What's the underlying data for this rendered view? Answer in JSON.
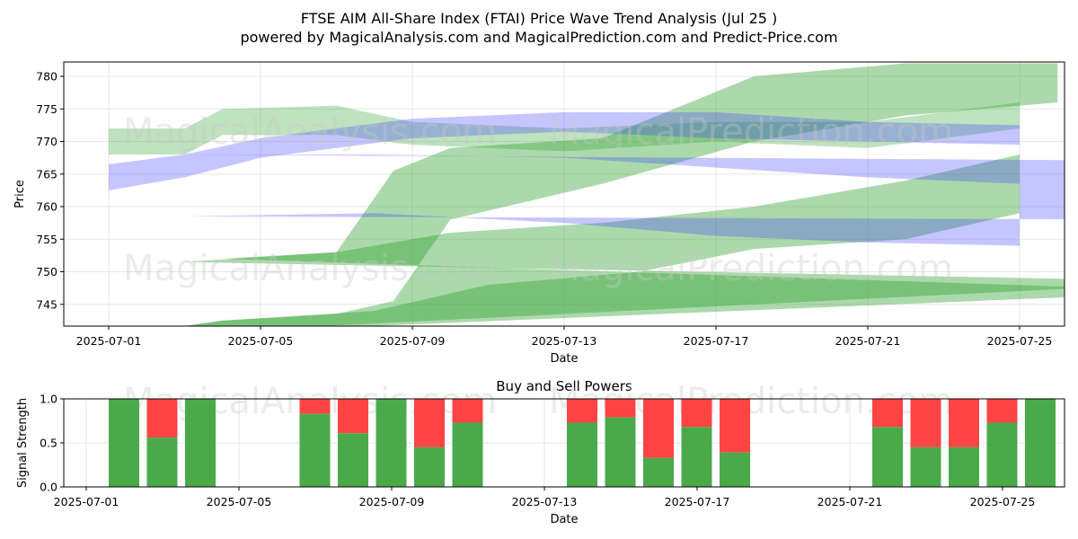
{
  "titles": {
    "main_line1": "FTSE AIM All-Share Index (FTAI) Price Wave Trend Analysis (Jul 25 )",
    "main_line2": "powered by MagicalAnalysis.com and MagicalPrediction.com and Predict-Price.com",
    "bottom": "Buy and Sell Powers"
  },
  "watermarks": [
    "MagicalAnalysis.com",
    "MagicalPrediction.com"
  ],
  "colors": {
    "buy": "#4aaa4a",
    "sell": "#ff4444",
    "green_band": "#2ca02c",
    "blue_band": "#4040ff"
  },
  "chart_data": [
    {
      "type": "area",
      "title": "FTSE AIM All-Share Index (FTAI) Price Wave Trend Analysis (Jul 25 )",
      "xlabel": "Date",
      "ylabel": "Price",
      "x_ticks": [
        "2025-07-01",
        "2025-07-05",
        "2025-07-09",
        "2025-07-13",
        "2025-07-17",
        "2025-07-21",
        "2025-07-25"
      ],
      "y_ticks": [
        745,
        750,
        755,
        760,
        765,
        770,
        775,
        780
      ],
      "xlim": [
        "2025-06-30",
        "2025-07-26"
      ],
      "ylim": [
        741.5,
        782
      ],
      "grid": true,
      "series": [
        {
          "color": "green",
          "opacity": 0.4,
          "upper": [
            [
              "2025-06-30",
              748.5
            ],
            [
              "2025-07-03",
              751.5
            ],
            [
              "2025-07-07",
              753
            ],
            [
              "2025-07-10",
              756
            ],
            [
              "2025-07-14",
              757.5
            ],
            [
              "2025-07-18",
              760
            ],
            [
              "2025-07-22",
              764
            ],
            [
              "2025-07-25",
              768
            ]
          ],
          "lower": [
            [
              "2025-07-01",
              740
            ],
            [
              "2025-07-04",
              742.5
            ],
            [
              "2025-07-08",
              744
            ],
            [
              "2025-07-11",
              748
            ],
            [
              "2025-07-15",
              750
            ],
            [
              "2025-07-18",
              753.5
            ],
            [
              "2025-07-22",
              755
            ],
            [
              "2025-07-25",
              759
            ]
          ]
        },
        {
          "color": "green",
          "opacity": 0.4,
          "upper": [
            [
              "2025-06-30",
              747
            ],
            [
              "2025-07-04",
              752
            ],
            [
              "2025-07-07",
              753
            ],
            [
              "2025-07-08.5",
              765.5
            ],
            [
              "2025-07-10",
              769
            ],
            [
              "2025-07-14",
              770.5
            ],
            [
              "2025-07-18",
              780
            ],
            [
              "2025-07-22",
              782
            ],
            [
              "2025-07-26",
              782
            ]
          ],
          "lower": [
            [
              "2025-07-01",
              740
            ],
            [
              "2025-07-04",
              742.5
            ],
            [
              "2025-07-07",
              743.5
            ],
            [
              "2025-07-08.5",
              745.5
            ],
            [
              "2025-07-10",
              758
            ],
            [
              "2025-07-14",
              763.5
            ],
            [
              "2025-07-18",
              770
            ],
            [
              "2025-07-22",
              774
            ],
            [
              "2025-07-26",
              776
            ]
          ]
        },
        {
          "color": "green",
          "opacity": 0.3,
          "upper": [
            [
              "2025-07-01",
              772
            ],
            [
              "2025-07-03",
              772
            ],
            [
              "2025-07-04",
              775
            ],
            [
              "2025-07-07",
              775.5
            ],
            [
              "2025-07-09",
              773
            ],
            [
              "2025-07-13",
              772
            ],
            [
              "2025-07-17",
              773
            ],
            [
              "2025-07-21",
              773
            ],
            [
              "2025-07-25",
              776
            ]
          ],
          "lower": [
            [
              "2025-07-01",
              768
            ],
            [
              "2025-07-03",
              768
            ],
            [
              "2025-07-04",
              771
            ],
            [
              "2025-07-07",
              771
            ],
            [
              "2025-07-09",
              769.5
            ],
            [
              "2025-07-13",
              768.5
            ],
            [
              "2025-07-17",
              770
            ],
            [
              "2025-07-21",
              769
            ],
            [
              "2025-07-25",
              772
            ]
          ]
        },
        {
          "color": "blue",
          "opacity": 0.3,
          "upper": [
            [
              "2025-06-30",
              767
            ],
            [
              "2025-07-03",
              768
            ],
            [
              "2025-07-08",
              768
            ],
            [
              "2025-07-13",
              767.5
            ],
            [
              "2025-07-17",
              766
            ],
            [
              "2025-07-21",
              764.5
            ],
            [
              "2025-07-25",
              763.5
            ]
          ],
          "lower": [
            [
              "2025-06-30",
              758
            ],
            [
              "2025-07-03",
              758.5
            ],
            [
              "2025-07-08",
              759
            ],
            [
              "2025-07-13",
              757.5
            ],
            [
              "2025-07-17",
              755.5
            ],
            [
              "2025-07-21",
              754.5
            ],
            [
              "2025-07-25",
              754
            ]
          ]
        },
        {
          "color": "blue",
          "opacity": 0.3,
          "upper": [
            [
              "2025-07-01",
              766.5
            ],
            [
              "2025-07-03",
              768
            ],
            [
              "2025-07-05",
              770.5
            ],
            [
              "2025-07-09",
              773.5
            ],
            [
              "2025-07-13",
              774.5
            ],
            [
              "2025-07-17",
              774.5
            ],
            [
              "2025-07-21",
              773
            ],
            [
              "2025-07-25",
              772.5
            ]
          ],
          "lower": [
            [
              "2025-07-01",
              762.5
            ],
            [
              "2025-07-03",
              764.5
            ],
            [
              "2025-07-05",
              767.5
            ],
            [
              "2025-07-09",
              770.5
            ],
            [
              "2025-07-13",
              771.5
            ],
            [
              "2025-07-17",
              770.5
            ],
            [
              "2025-07-21",
              770
            ],
            [
              "2025-07-25",
              769.5
            ]
          ]
        }
      ]
    },
    {
      "type": "bar",
      "title": "Buy and Sell Powers",
      "xlabel": "Date",
      "ylabel": "Signal Strength",
      "x_ticks": [
        "2025-07-01",
        "2025-07-05",
        "2025-07-09",
        "2025-07-13",
        "2025-07-17",
        "2025-07-21",
        "2025-07-25"
      ],
      "y_ticks": [
        "0.0",
        "0.5",
        "1.0"
      ],
      "ylim": [
        0,
        1
      ],
      "series": [
        {
          "name": "buy",
          "points": [
            [
              "2025-07-02",
              1.0
            ],
            [
              "2025-07-03",
              0.56
            ],
            [
              "2025-07-04",
              1.0
            ],
            [
              "2025-07-07",
              0.83
            ],
            [
              "2025-07-08",
              0.61
            ],
            [
              "2025-07-09",
              1.0
            ],
            [
              "2025-07-10",
              0.45
            ],
            [
              "2025-07-11",
              0.73
            ],
            [
              "2025-07-14",
              0.73
            ],
            [
              "2025-07-15",
              0.79
            ],
            [
              "2025-07-16",
              0.33
            ],
            [
              "2025-07-17",
              0.68
            ],
            [
              "2025-07-18",
              0.39
            ],
            [
              "2025-07-22",
              0.68
            ],
            [
              "2025-07-23",
              0.45
            ],
            [
              "2025-07-24",
              0.45
            ],
            [
              "2025-07-25",
              0.73
            ],
            [
              "2025-07-26",
              1.0
            ]
          ]
        }
      ]
    }
  ]
}
